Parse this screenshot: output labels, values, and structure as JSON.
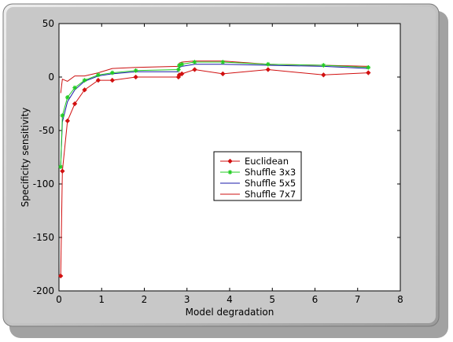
{
  "chart_data": {
    "type": "line",
    "xlabel": "Model degradation",
    "ylabel": "Specificity sensitivity",
    "xlim": [
      0,
      8
    ],
    "ylim": [
      -200,
      50
    ],
    "xticks": [
      "0",
      "1",
      "2",
      "3",
      "4",
      "5",
      "6",
      "7",
      "8"
    ],
    "yticks": [
      "50",
      "0",
      "-50",
      "-100",
      "-150",
      "-200"
    ],
    "grid": false,
    "legend_position": "center-right",
    "series": [
      {
        "name": "Euclidean",
        "color": "#d11010",
        "marker": "diamond",
        "x": [
          0.04,
          0.08,
          0.2,
          0.37,
          0.6,
          0.92,
          1.25,
          1.8,
          2.8,
          2.82,
          2.88,
          3.18,
          3.84,
          4.9,
          6.2,
          7.25
        ],
        "y": [
          -186,
          -88,
          -41,
          -25,
          -12,
          -3,
          -3,
          0,
          0,
          2,
          3,
          7,
          3,
          7,
          2,
          4
        ]
      },
      {
        "name": "Shuffle 3x3",
        "color": "#22cc22",
        "marker": "star",
        "x": [
          0.04,
          0.08,
          0.2,
          0.37,
          0.6,
          0.92,
          1.25,
          1.8,
          2.8,
          2.82,
          2.88,
          3.18,
          3.84,
          4.9,
          6.2,
          7.25
        ],
        "y": [
          -84,
          -36,
          -19,
          -10,
          -3,
          2,
          4,
          6,
          7,
          11,
          12,
          14,
          14,
          12,
          11,
          9
        ]
      },
      {
        "name": "Shuffle 5x5",
        "color": "#1a1aa8",
        "marker": "none",
        "x": [
          0.04,
          0.08,
          0.2,
          0.37,
          0.6,
          0.92,
          1.25,
          1.8,
          2.8,
          2.82,
          2.88,
          3.18,
          3.84,
          4.9,
          6.2,
          7.25
        ],
        "y": [
          -83,
          -42,
          -23,
          -12,
          -4,
          1,
          3,
          5,
          5,
          9,
          10,
          12,
          12,
          11,
          10,
          8
        ]
      },
      {
        "name": "Shuffle 7x7",
        "color": "#cc1010",
        "marker": "none",
        "x": [
          0.04,
          0.08,
          0.2,
          0.37,
          0.6,
          0.92,
          1.25,
          1.8,
          2.8,
          2.82,
          2.88,
          3.18,
          3.84,
          4.9,
          6.2,
          7.25
        ],
        "y": [
          -15,
          -2,
          -4,
          1,
          1,
          4,
          8,
          9,
          10,
          13,
          14,
          15,
          15,
          12,
          11,
          10
        ]
      }
    ]
  },
  "colors": {
    "window_bg": "#c8c8c8",
    "plot_bg": "#ffffff"
  }
}
